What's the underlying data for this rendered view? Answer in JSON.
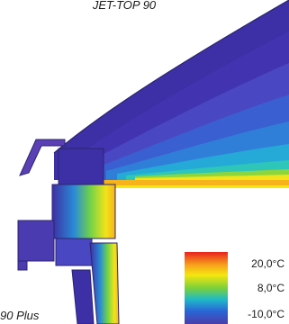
{
  "figure": {
    "top_label": "JET-TOP 90",
    "bottom_label": "90 Plus"
  },
  "legend": {
    "entries": [
      {
        "label": "20,0°C",
        "color": "#e8231f"
      },
      {
        "label": "8,0°C",
        "color": "#7bd13b"
      },
      {
        "label": "-10,0°C",
        "color": "#4a3da8"
      }
    ],
    "gradient": [
      "#e8231f",
      "#f7a21b",
      "#f5e60f",
      "#7bd13b",
      "#1fb9c8",
      "#2a66d6",
      "#4a3da8"
    ]
  },
  "colors": {
    "outline": "#2b2570",
    "dome_cold": "#3d2fa5",
    "frame": "#5a3fb5"
  }
}
